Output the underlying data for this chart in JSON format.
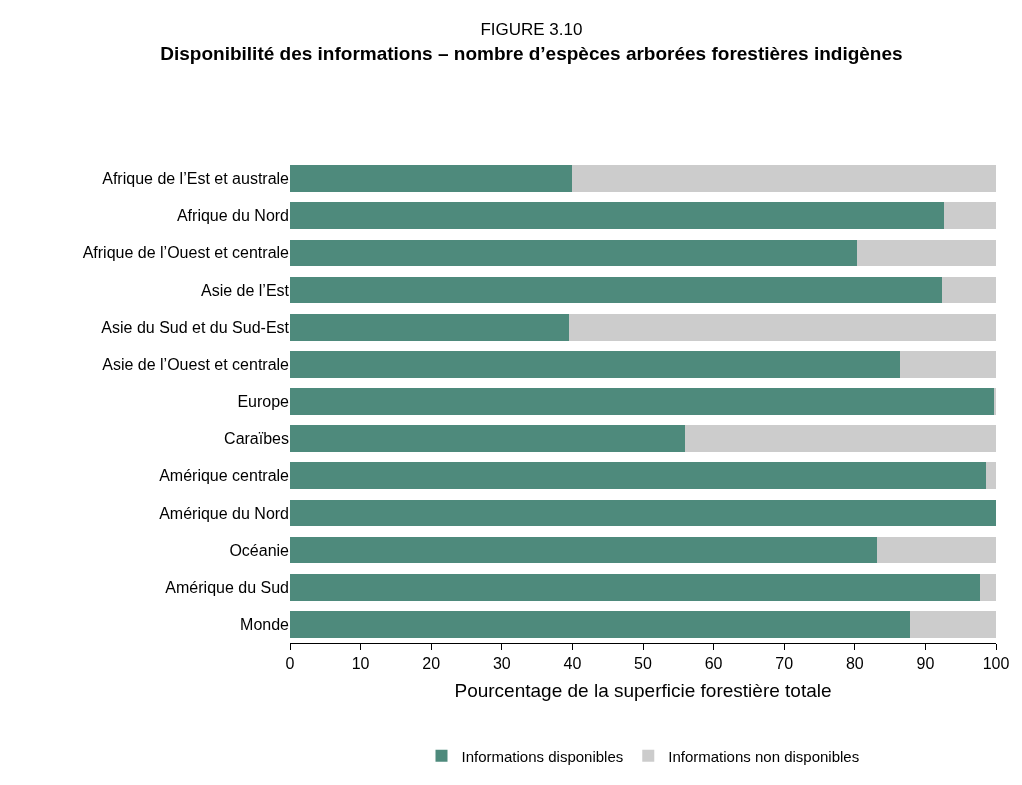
{
  "chart_data": {
    "type": "bar",
    "orientation": "horizontal",
    "stacked": true,
    "title": "FIGURE 3.10",
    "subtitle": "Disponibilité des informations – nombre d’espèces arborées forestières indigènes",
    "xlabel": "Pourcentage de la superficie forestière totale",
    "categories": [
      "Afrique de l’Est et australe",
      "Afrique du Nord",
      "Afrique de l’Ouest et centrale",
      "Asie de l’Est",
      "Asie du Sud et du Sud-Est",
      "Asie de l’Ouest et centrale",
      "Europe",
      "Caraïbes",
      "Amérique centrale",
      "Amérique du Nord",
      "Océanie",
      "Amérique du Sud",
      "Monde"
    ],
    "series": [
      {
        "name": "Informations disponibles",
        "color": "#4e8a7c",
        "values": [
          40,
          92.6,
          80.3,
          92.3,
          39.5,
          86.4,
          99.7,
          55.9,
          98.6,
          100,
          83.2,
          97.8,
          87.8
        ]
      },
      {
        "name": "Informations non disponibles",
        "color": "#cccccc",
        "values": [
          60,
          7.4,
          19.7,
          7.7,
          60.5,
          13.6,
          0.3,
          44.1,
          1.4,
          0,
          16.8,
          2.2,
          12.2
        ]
      }
    ],
    "xlim": [
      0,
      100
    ],
    "xticks": [
      0,
      10,
      20,
      30,
      40,
      50,
      60,
      70,
      80,
      90,
      100
    ],
    "grid": false,
    "legend": "bottom"
  }
}
